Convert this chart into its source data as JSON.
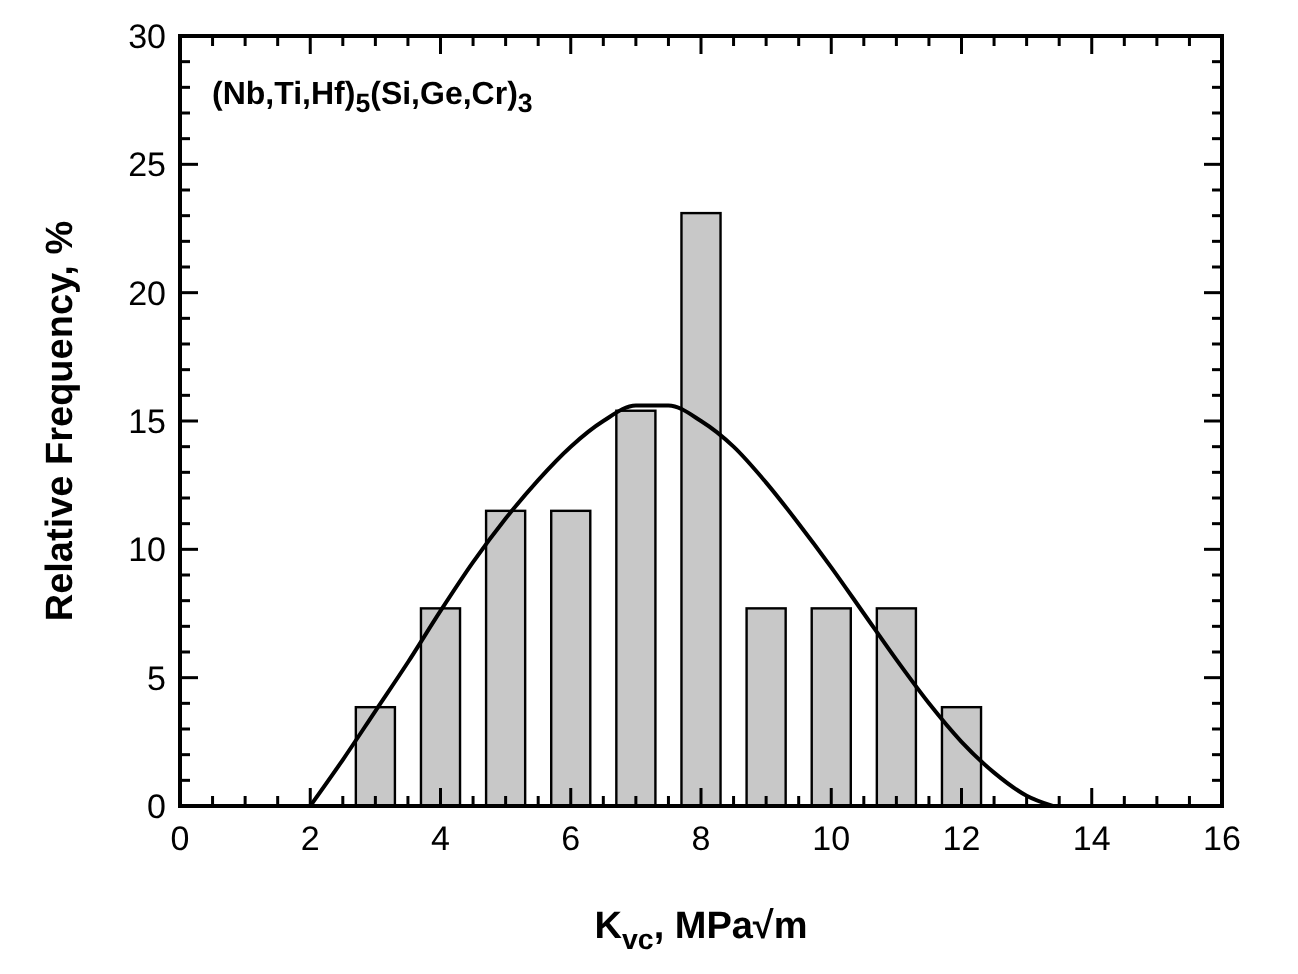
{
  "chart_data": {
    "type": "bar",
    "xlabel": "K$_{vc}$, MPa√m",
    "ylabel": "Relative Frequency, %",
    "annotations": [
      "(Nb,Ti,Hf)$_{5}$(Si,Ge,Cr)$_{3}$"
    ],
    "x": [
      3,
      4,
      5,
      6,
      7,
      8,
      9,
      10,
      11,
      12
    ],
    "series": [
      {
        "color": "#c8c8c8",
        "values": [
          3.85,
          7.7,
          11.5,
          11.5,
          15.4,
          23.1,
          7.7,
          7.7,
          7.7,
          3.85
        ]
      },
      {
        "type": "line",
        "color": "#000000",
        "x": [
          2,
          2.5,
          3,
          3.5,
          4,
          4.5,
          5,
          5.5,
          6,
          6.5,
          7,
          7.5,
          8,
          8.5,
          9,
          9.5,
          10,
          10.5,
          11,
          11.5,
          12,
          12.5,
          13,
          13.4
        ],
        "values": [
          0,
          1.8,
          3.7,
          5.6,
          7.6,
          9.5,
          11.2,
          12.7,
          14.0,
          15.0,
          15.6,
          15.6,
          15.0,
          14.0,
          12.6,
          11.0,
          9.3,
          7.5,
          5.7,
          4.0,
          2.5,
          1.3,
          0.4,
          0
        ]
      }
    ],
    "xlim": [
      0,
      16
    ],
    "xticks": [
      0,
      {
        "value": 0.5,
        "label": null
      },
      {
        "value": 1,
        "label": null
      },
      {
        "value": 1.5,
        "label": null
      },
      2,
      {
        "value": 2.5,
        "label": null
      },
      {
        "value": 3,
        "label": null
      },
      {
        "value": 3.5,
        "label": null
      },
      4,
      {
        "value": 4.5,
        "label": null
      },
      {
        "value": 5,
        "label": null
      },
      {
        "value": 5.5,
        "label": null
      },
      6,
      {
        "value": 6.5,
        "label": null
      },
      {
        "value": 7,
        "label": null
      },
      {
        "value": 7.5,
        "label": null
      },
      8,
      {
        "value": 8.5,
        "label": null
      },
      {
        "value": 9,
        "label": null
      },
      {
        "value": 9.5,
        "label": null
      },
      10,
      {
        "value": 10.5,
        "label": null
      },
      {
        "value": 11,
        "label": null
      },
      {
        "value": 11.5,
        "label": null
      },
      12,
      {
        "value": 12.5,
        "label": null
      },
      {
        "value": 13,
        "label": null
      },
      {
        "value": 13.5,
        "label": null
      },
      14,
      {
        "value": 14.5,
        "label": null
      },
      {
        "value": 15,
        "label": null
      },
      {
        "value": 15.5,
        "label": null
      },
      16
    ],
    "ylim": [
      0,
      30
    ],
    "yticks": [
      0,
      {
        "value": 1,
        "label": null
      },
      {
        "value": 2,
        "label": null
      },
      {
        "value": 3,
        "label": null
      },
      {
        "value": 4,
        "label": null
      },
      5,
      {
        "value": 6,
        "label": null
      },
      {
        "value": 7,
        "label": null
      },
      {
        "value": 8,
        "label": null
      },
      {
        "value": 9,
        "label": null
      },
      10,
      {
        "value": 11,
        "label": null
      },
      {
        "value": 12,
        "label": null
      },
      {
        "value": 13,
        "label": null
      },
      {
        "value": 14,
        "label": null
      },
      15,
      {
        "value": 16,
        "label": null
      },
      {
        "value": 17,
        "label": null
      },
      {
        "value": 18,
        "label": null
      },
      {
        "value": 19,
        "label": null
      },
      20,
      {
        "value": 21,
        "label": null
      },
      {
        "value": 22,
        "label": null
      },
      {
        "value": 23,
        "label": null
      },
      {
        "value": 24,
        "label": null
      },
      25,
      {
        "value": 26,
        "label": null
      },
      {
        "value": 27,
        "label": null
      },
      {
        "value": 28,
        "label": null
      },
      {
        "value": 29,
        "label": null
      },
      30
    ],
    "grid": false,
    "marker": "none",
    "line_style": "solid"
  }
}
